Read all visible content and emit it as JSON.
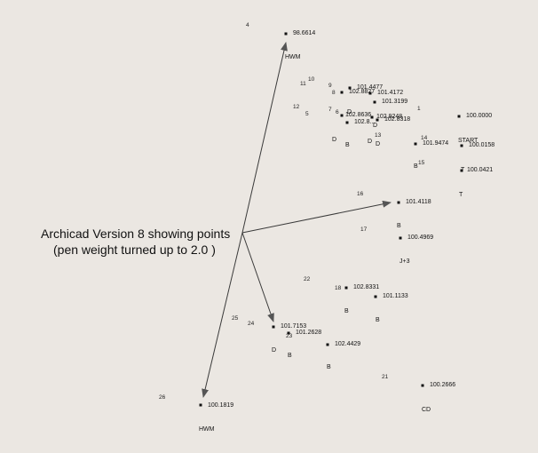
{
  "annotation": {
    "line1": "Archicad Version 8 showing points",
    "line2": "(pen weight turned up to 2.0 )"
  },
  "colors": {
    "background": "#ebe7e2",
    "arrow": "#3a3a3a",
    "point": "#111111"
  },
  "points": [
    {
      "value": "98.6614"
    },
    {
      "value": "101.4477"
    },
    {
      "value": "102.8827"
    },
    {
      "value": "101.4172"
    },
    {
      "value": "101.3199"
    },
    {
      "value": "102.8636"
    },
    {
      "value": "102.9248"
    },
    {
      "value": "102.8318"
    },
    {
      "value": "102.8..."
    },
    {
      "value": "100.0000"
    },
    {
      "value": "101.9474"
    },
    {
      "value": "100.0158"
    },
    {
      "value": "100.0421"
    },
    {
      "value": "101.4118"
    },
    {
      "value": "100.4969"
    },
    {
      "value": "102.8331"
    },
    {
      "value": "101.1133"
    },
    {
      "value": "101.7153"
    },
    {
      "value": "101.2628"
    },
    {
      "value": "102.4429"
    },
    {
      "value": "100.2666"
    },
    {
      "value": "100.1819"
    }
  ],
  "ids": [
    "4",
    "10",
    "11",
    "9",
    "8",
    "12",
    "7",
    "6",
    "5",
    "1",
    "13",
    "14",
    "15",
    "16",
    "17",
    "22",
    "18",
    "25",
    "24",
    "23",
    "21",
    "26"
  ],
  "codes": [
    {
      "text": "HWM"
    },
    {
      "text": "D"
    },
    {
      "text": "D"
    },
    {
      "text": "D"
    },
    {
      "text": "B"
    },
    {
      "text": "D"
    },
    {
      "text": "D"
    },
    {
      "text": "START"
    },
    {
      "text": "B"
    },
    {
      "text": "T"
    },
    {
      "text": "T"
    },
    {
      "text": "B"
    },
    {
      "text": "J+3"
    },
    {
      "text": "B"
    },
    {
      "text": "B"
    },
    {
      "text": "D"
    },
    {
      "text": "B"
    },
    {
      "text": "B"
    },
    {
      "text": "CD"
    },
    {
      "text": "HWM"
    }
  ]
}
